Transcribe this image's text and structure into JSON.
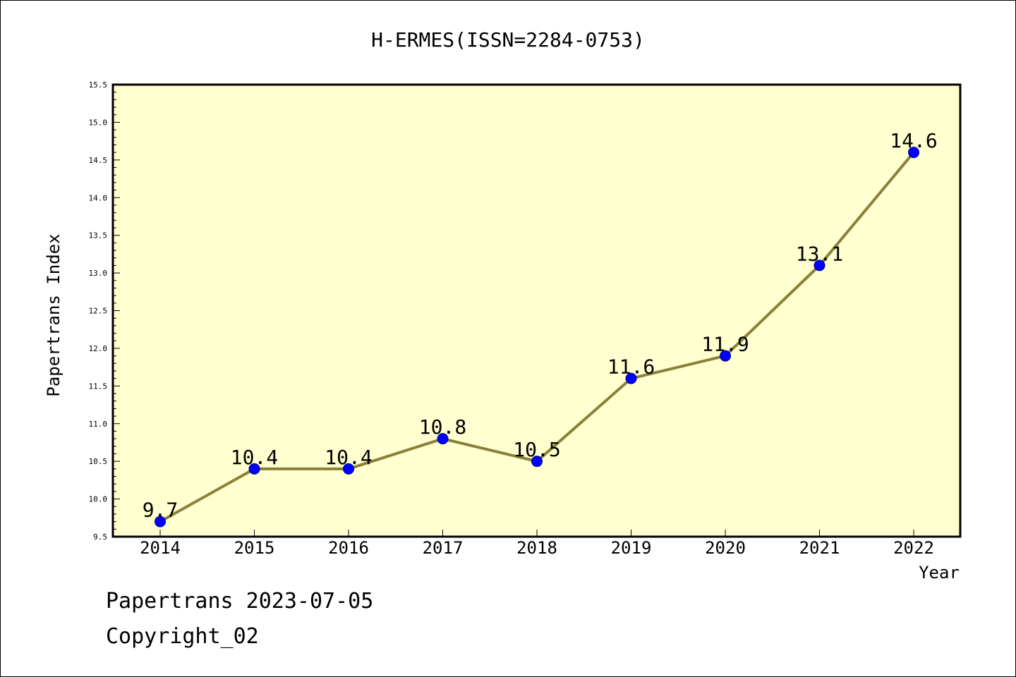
{
  "chart_data": {
    "type": "line",
    "title": "H-ERMES(ISSN=2284-0753)",
    "xlabel": "Year",
    "ylabel": "Papertrans Index",
    "categories": [
      "2014",
      "2015",
      "2016",
      "2017",
      "2018",
      "2019",
      "2020",
      "2021",
      "2022"
    ],
    "series": [
      {
        "values": [
          9.7,
          10.4,
          10.4,
          10.8,
          10.5,
          11.6,
          11.9,
          13.1,
          14.6
        ]
      }
    ],
    "data_labels": [
      "9.7",
      "10.4",
      "10.4",
      "10.8",
      "10.5",
      "11.6",
      "11.9",
      "13.1",
      "14.6"
    ],
    "ylim": [
      9.5,
      15.5
    ],
    "yticks": [
      "9.5",
      "10.0",
      "10.5",
      "11.0",
      "11.5",
      "12.0",
      "12.5",
      "13.0",
      "13.5",
      "14.0",
      "14.5",
      "15.0",
      "15.5"
    ],
    "grid": false,
    "colors": {
      "plot_background": "#ffffd0",
      "line": "#8b8038",
      "marker": "#0000ff"
    }
  },
  "footer": {
    "line1": "Papertrans 2023-07-05",
    "line2": "Copyright_02"
  }
}
